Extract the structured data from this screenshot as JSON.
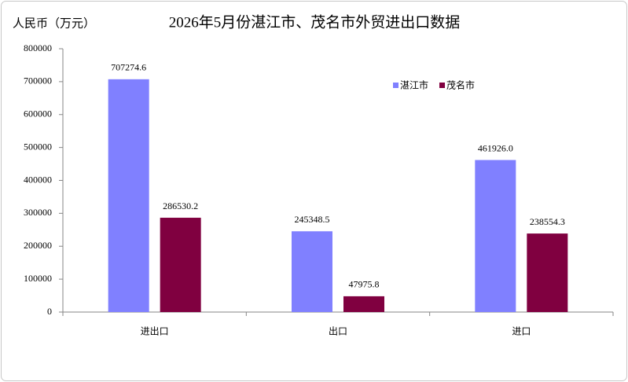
{
  "chart_data": {
    "type": "bar",
    "title": "2026年5月份湛江市、茂名市外贸进出口数据",
    "y_label": "人民币（万元）",
    "categories": [
      "进出口",
      "出口",
      "进口"
    ],
    "series": [
      {
        "name": "湛江市",
        "color": "#8080ff",
        "values": [
          707274.6,
          245348.5,
          461926
        ],
        "value_labels": [
          "707274.6",
          "245348.5",
          "461926.0"
        ]
      },
      {
        "name": "茂名市",
        "color": "#800040",
        "values": [
          286530.2,
          47975.8,
          238554.3
        ],
        "value_labels": [
          "286530.2",
          "47975.8",
          "238554.3"
        ]
      }
    ],
    "ylim": [
      0,
      800000
    ],
    "yticks": [
      0,
      100000,
      200000,
      300000,
      400000,
      500000,
      600000,
      700000,
      800000
    ],
    "legend": "upper right",
    "grid": false
  }
}
